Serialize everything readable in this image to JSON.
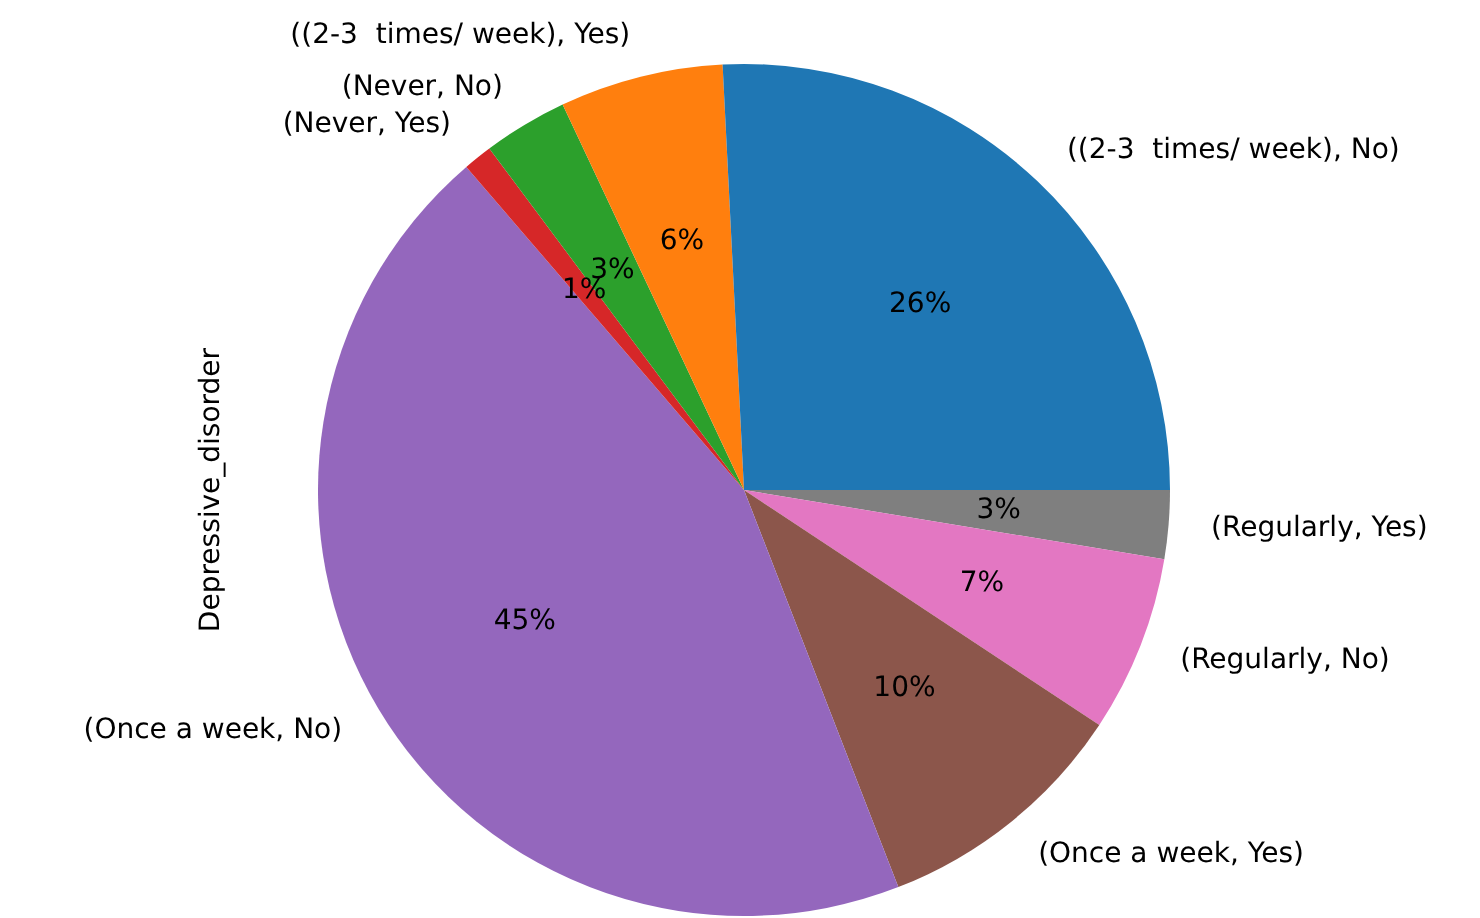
{
  "chart_data": {
    "type": "pie",
    "ylabel": "Depressive_disorder",
    "categories": [
      "((2-3  times/ week), No)",
      "((2-3  times/ week), Yes)",
      "(Never, No)",
      "(Never, Yes)",
      "(Once a week, No)",
      "(Once a week, Yes)",
      "(Regularly, No)",
      "(Regularly, Yes)"
    ],
    "values": [
      25.8,
      6.2,
      3.2,
      1.1,
      44.6,
      9.8,
      6.7,
      2.6
    ],
    "value_labels": [
      "26%",
      "6%",
      "3%",
      "1%",
      "45%",
      "10%",
      "7%",
      "3%"
    ],
    "colors": [
      "#1f77b4",
      "#ff7f0e",
      "#2ca02c",
      "#d62728",
      "#9467bd",
      "#8c564b",
      "#e377c2",
      "#7f7f7f"
    ],
    "legend": false
  }
}
